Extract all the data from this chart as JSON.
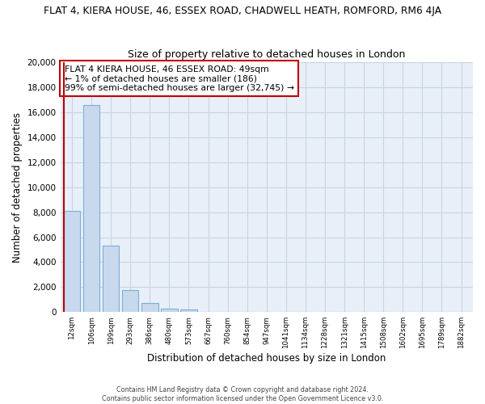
{
  "title": "FLAT 4, KIERA HOUSE, 46, ESSEX ROAD, CHADWELL HEATH, ROMFORD, RM6 4JA",
  "subtitle": "Size of property relative to detached houses in London",
  "xlabel": "Distribution of detached houses by size in London",
  "ylabel": "Number of detached properties",
  "bar_labels": [
    "12sqm",
    "106sqm",
    "199sqm",
    "293sqm",
    "386sqm",
    "480sqm",
    "573sqm",
    "667sqm",
    "760sqm",
    "854sqm",
    "947sqm",
    "1041sqm",
    "1134sqm",
    "1228sqm",
    "1321sqm",
    "1415sqm",
    "1508sqm",
    "1602sqm",
    "1695sqm",
    "1789sqm",
    "1882sqm"
  ],
  "bar_values": [
    8100,
    16600,
    5300,
    1750,
    750,
    250,
    200,
    0,
    0,
    0,
    0,
    0,
    0,
    0,
    0,
    0,
    0,
    0,
    0,
    0,
    0
  ],
  "bar_color": "#c8d9ee",
  "bar_edge_color": "#7bafd4",
  "annotation_line1": "FLAT 4 KIERA HOUSE, 46 ESSEX ROAD: 49sqm",
  "annotation_line2": "← 1% of detached houses are smaller (186)",
  "annotation_line3": "99% of semi-detached houses are larger (32,745) →",
  "vline_color": "#c00000",
  "ylim": [
    0,
    20000
  ],
  "yticks": [
    0,
    2000,
    4000,
    6000,
    8000,
    10000,
    12000,
    14000,
    16000,
    18000,
    20000
  ],
  "footer_line1": "Contains HM Land Registry data © Crown copyright and database right 2024.",
  "footer_line2": "Contains public sector information licensed under the Open Government Licence v3.0.",
  "bg_color": "#ffffff",
  "axes_bg_color": "#e8eff8",
  "grid_color": "#c8d4e4"
}
